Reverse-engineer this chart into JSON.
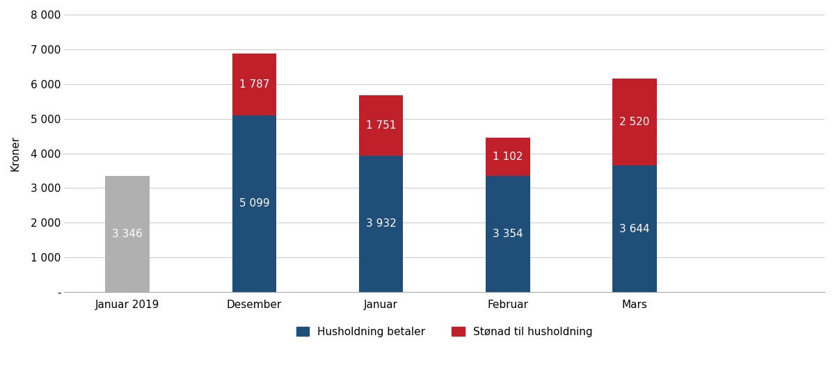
{
  "categories": [
    "Januar 2019",
    "Desember",
    "Januar",
    "Februar",
    "Mars"
  ],
  "bottom_values": [
    3346,
    5099,
    3932,
    3354,
    3644
  ],
  "top_values": [
    0,
    1787,
    1751,
    1102,
    2520
  ],
  "bottom_colors": [
    "#b0b0b0",
    "#1f4e79",
    "#1f4e79",
    "#1f4e79",
    "#1f4e79"
  ],
  "top_color": "#c0202a",
  "bottom_label": "Husholdning betaler",
  "top_label": "Stønad til husholdning",
  "ylabel": "Kroner",
  "ylim": [
    0,
    8000
  ],
  "yticks": [
    0,
    1000,
    2000,
    3000,
    4000,
    5000,
    6000,
    7000,
    8000
  ],
  "ytick_labels": [
    "-",
    "1 000",
    "2 000",
    "3 000",
    "4 000",
    "5 000",
    "6 000",
    "7 000",
    "8 000"
  ],
  "text_color_white": "#ffffff",
  "bottom_bar_label_values": [
    "3 346",
    "5 099",
    "3 932",
    "3 354",
    "3 644"
  ],
  "top_bar_label_values": [
    "",
    "1 787",
    "1 751",
    "1 102",
    "2 520"
  ],
  "legend_blue_color": "#1f4e79",
  "legend_red_color": "#c0202a",
  "bar_width": 0.35,
  "font_size_labels": 11,
  "font_size_axis": 11,
  "font_size_ticks": 11,
  "xlim_left": -0.5,
  "xlim_right": 5.5
}
